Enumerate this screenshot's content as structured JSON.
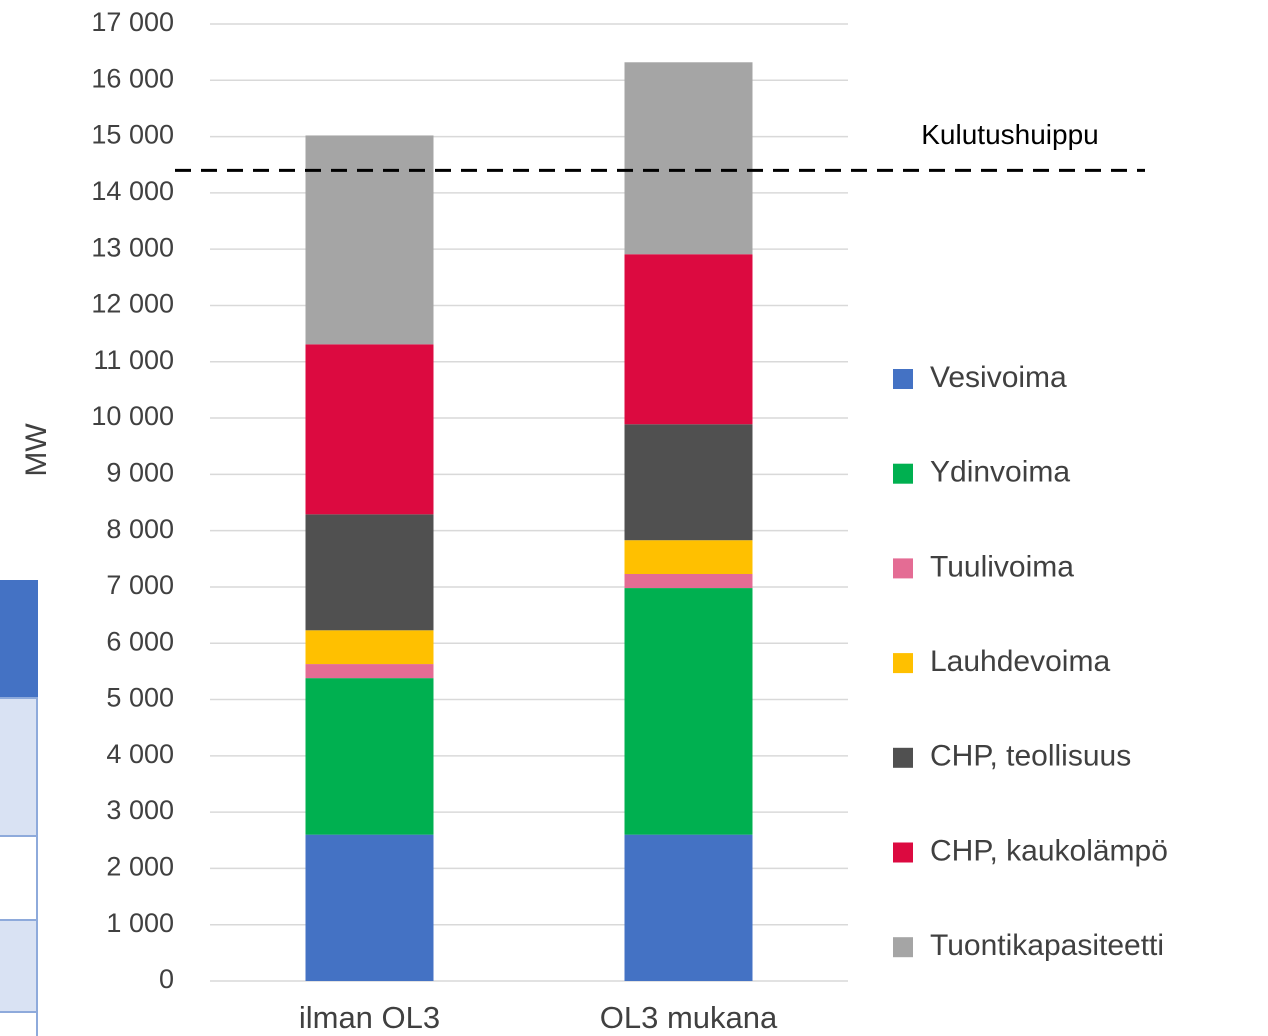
{
  "chart_data": {
    "type": "stacked_bar",
    "y_label": "MW",
    "categories": [
      "ilman OL3",
      "OL3 mukana"
    ],
    "series": [
      {
        "name": "Vesivoima",
        "color": "#4472c4",
        "values": [
          2600,
          2600
        ]
      },
      {
        "name": "Ydinvoima",
        "color": "#00b050",
        "values": [
          2780,
          4380
        ]
      },
      {
        "name": "Tuulivoima",
        "color": "#e46c94",
        "values": [
          250,
          250
        ]
      },
      {
        "name": "Lauhdevoima",
        "color": "#ffc000",
        "values": [
          600,
          600
        ]
      },
      {
        "name": "CHP, teollisuus",
        "color": "#505050",
        "values": [
          2060,
          2060
        ]
      },
      {
        "name": "CHP, kaukolämpö",
        "color": "#dc0a40",
        "values": [
          3020,
          3020
        ]
      },
      {
        "name": "Tuontikapasiteetti",
        "color": "#a5a5a5",
        "values": [
          3710,
          3410
        ]
      }
    ],
    "reference_line": {
      "label": "Kulutushuippu",
      "value": 14400
    },
    "ylim": [
      0,
      17000
    ],
    "yticks": [
      0,
      {
        "value": 1000,
        "label": "1 000"
      },
      {
        "value": 2000,
        "label": "2 000"
      },
      {
        "value": 3000,
        "label": "3 000"
      },
      {
        "value": 4000,
        "label": "4 000"
      },
      {
        "value": 5000,
        "label": "5 000"
      },
      {
        "value": 6000,
        "label": "6 000"
      },
      {
        "value": 7000,
        "label": "7 000"
      },
      {
        "value": 8000,
        "label": "8 000"
      },
      {
        "value": 9000,
        "label": "9 000"
      },
      {
        "value": 10000,
        "label": "10 000"
      },
      {
        "value": 11000,
        "label": "11 000"
      },
      {
        "value": 12000,
        "label": "12 000"
      },
      {
        "value": 13000,
        "label": "13 000"
      },
      {
        "value": 14000,
        "label": "14 000"
      },
      {
        "value": 15000,
        "label": "15 000"
      },
      {
        "value": 16000,
        "label": "16 000"
      },
      {
        "value": 17000,
        "label": "17 000"
      }
    ],
    "grid": true,
    "legend": "right"
  }
}
